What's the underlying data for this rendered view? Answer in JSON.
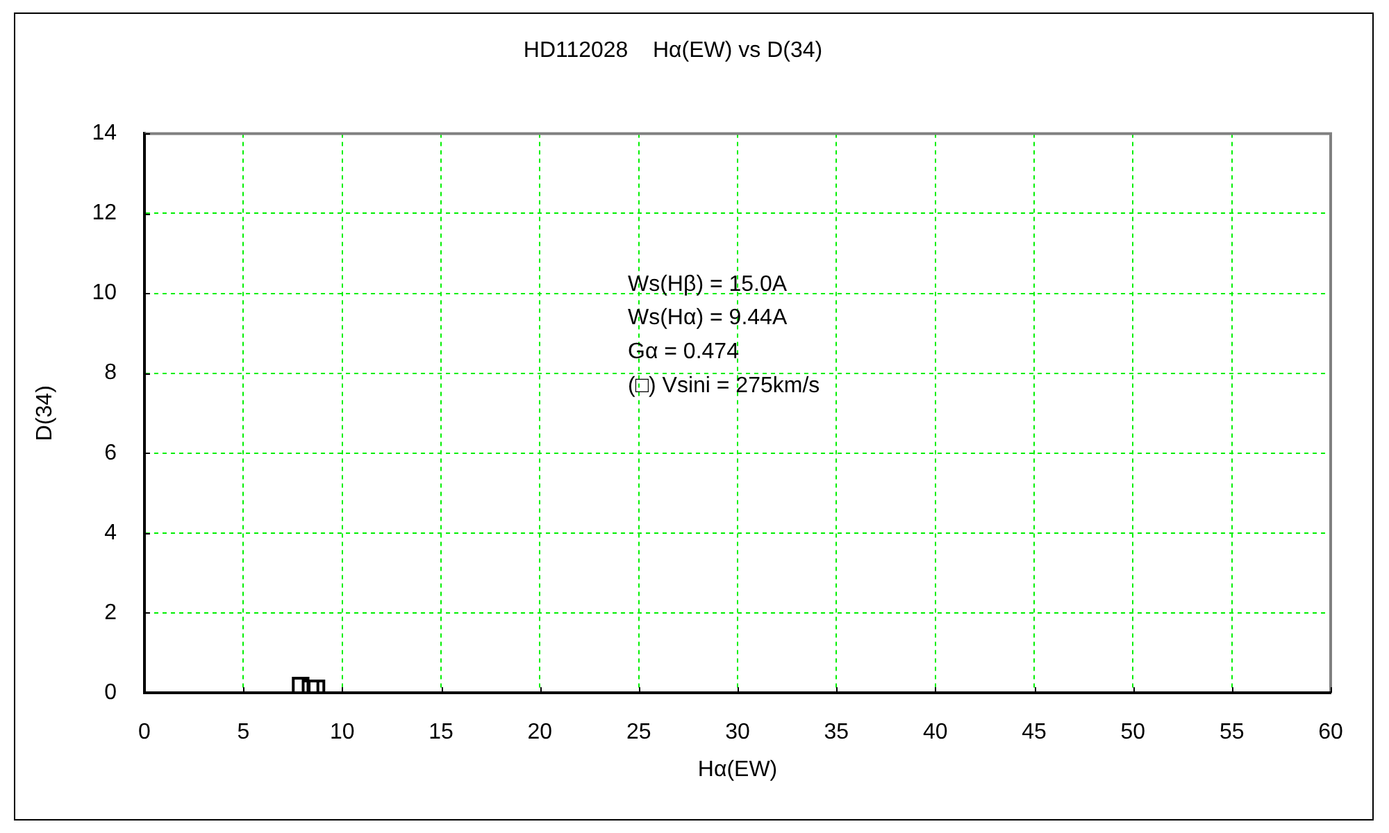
{
  "chart_data": {
    "type": "scatter",
    "title": "HD112028    Hα(EW) vs D(34)",
    "xlabel": "Hα(EW)",
    "ylabel": "D(34)",
    "x": [
      7.9,
      8.4,
      8.7
    ],
    "values": [
      0.18,
      0.11,
      0.11
    ],
    "color": "#000000",
    "marker": "square",
    "xlim": [
      0,
      60
    ],
    "ylim": [
      0,
      14
    ],
    "xticks": [
      0,
      5,
      10,
      15,
      20,
      25,
      30,
      35,
      40,
      45,
      50,
      55,
      60
    ],
    "yticks": [
      0,
      2,
      4,
      6,
      8,
      10,
      12,
      14
    ],
    "grid": true,
    "legend": false,
    "annotations": [
      "Ws(Hβ) = 15.0A",
      "Ws(Hα) = 9.44A",
      "Gα = 0.474",
      "(□) Vsini = 275km/s"
    ]
  }
}
